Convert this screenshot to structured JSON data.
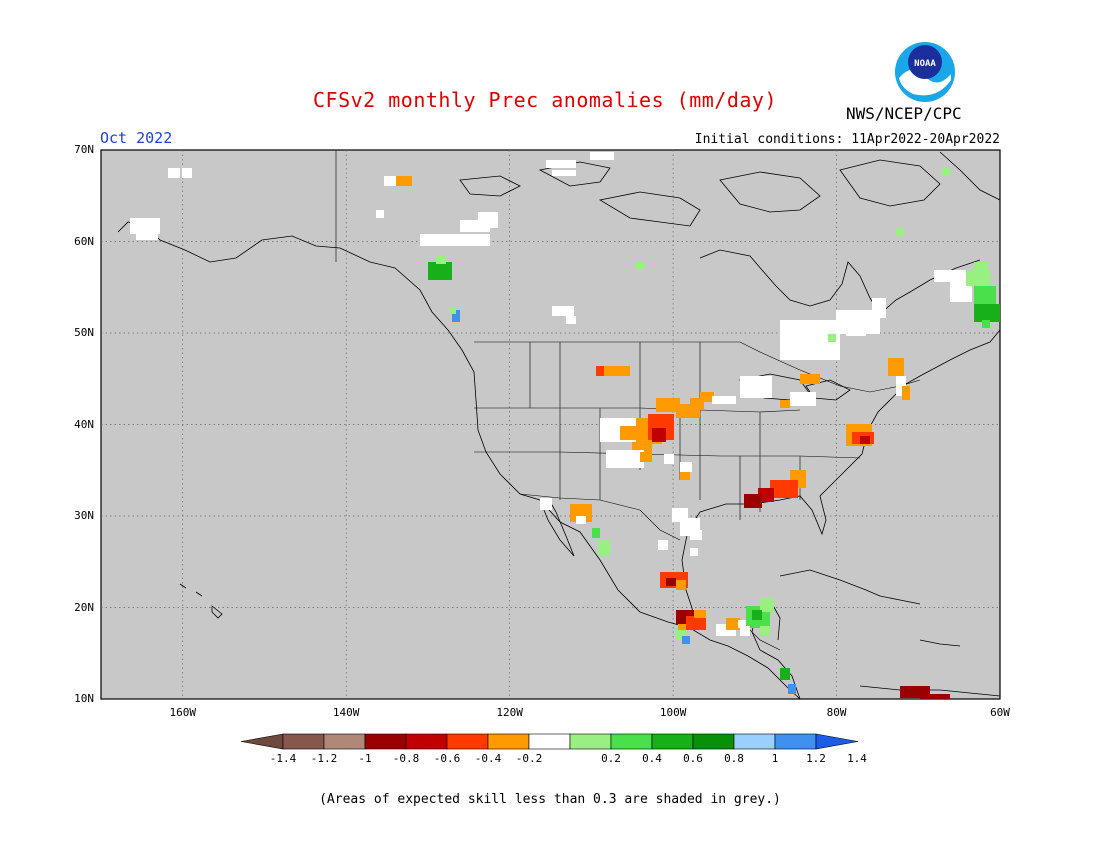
{
  "title": "CFSv2 monthly Prec anomalies (mm/day)",
  "agency": "NWS/NCEP/CPC",
  "logo_text": "NOAA",
  "target_month": "Oct 2022",
  "initial_conditions": "Initial conditions: 11Apr2022-20Apr2022",
  "footnote": "(Areas of expected skill less than 0.3 are shaded in grey.)",
  "map": {
    "lon_range": [
      -170,
      -60
    ],
    "lat_range": [
      10,
      70
    ],
    "lat_labels": [
      "70N",
      "60N",
      "50N",
      "40N",
      "30N",
      "20N",
      "10N"
    ],
    "lon_labels": [
      "160W",
      "140W",
      "120W",
      "100W",
      "80W",
      "60W"
    ],
    "background_color": "#c8c8c8",
    "grid": "dotted"
  },
  "colorbar": {
    "labels": [
      "-1.4",
      "-1.2",
      "-1",
      "-0.8",
      "-0.6",
      "-0.4",
      "-0.2",
      "0.2",
      "0.4",
      "0.6",
      "0.8",
      "1",
      "1.2",
      "1.4"
    ],
    "colors": [
      "#6e4a3c",
      "#87574b",
      "#b08878",
      "#9b0000",
      "#c00000",
      "#ff3a00",
      "#ff9a00",
      "#ffffff",
      "#98f080",
      "#4ae04a",
      "#18b018",
      "#089008",
      "#98d0ff",
      "#4090f0",
      "#1c5ce8"
    ]
  }
}
